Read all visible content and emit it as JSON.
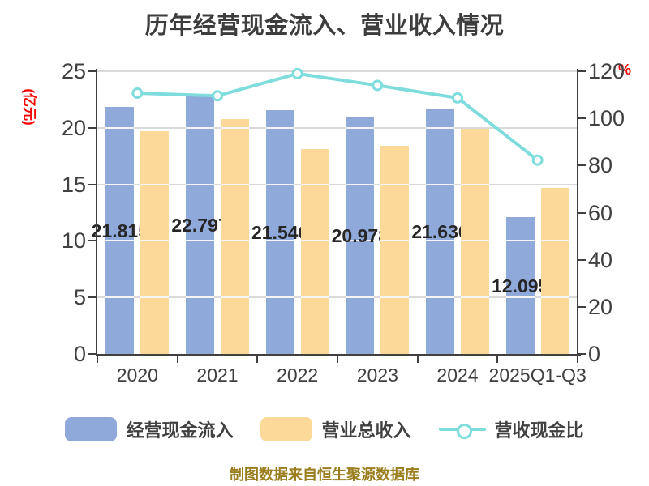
{
  "title": "历年经营现金流入、营业收入情况",
  "credit": "制图数据来自恒生聚源数据库",
  "left_axis": {
    "unit_label": "(亿元)",
    "ticks": [
      0,
      5,
      10,
      15,
      20,
      25
    ]
  },
  "right_axis": {
    "unit_label": "%",
    "ticks": [
      0,
      20,
      40,
      60,
      80,
      100,
      120
    ]
  },
  "legend": [
    {
      "label": "经营现金流入",
      "swatch": "bar",
      "color": "#8ea9da"
    },
    {
      "label": "营业总收入",
      "swatch": "bar",
      "color": "#fcd998"
    },
    {
      "label": "营收现金比",
      "swatch": "line",
      "color": "#7edcdc"
    }
  ],
  "colors": {
    "background": "#ffffff",
    "title_text": "#3d3d3d",
    "axis": "#404040",
    "gridline": "#d9d9d9",
    "grid_over_bar": "#f5f5f5",
    "bar_blue": "#8ea9da",
    "bar_orange": "#fcd998",
    "line_teal": "#7edcdc",
    "marker_fill": "#ffffff",
    "value_label": "#262626",
    "unit_label_red": "#fb0000",
    "credit_gold": "#9a7d1c"
  },
  "chart_data": {
    "type": "bar",
    "title": "历年经营现金流入、营业收入情况",
    "categories": [
      "2020",
      "2021",
      "2022",
      "2023",
      "2024",
      "2025Q1-Q3"
    ],
    "series": [
      {
        "name": "经营现金流入",
        "type": "bar",
        "axis": "left",
        "color": "#8ea9da",
        "values": [
          21.815,
          22.797,
          21.546,
          20.978,
          21.636,
          12.095
        ],
        "labels": [
          "21.815",
          "22.797",
          "21.546",
          "20.978",
          "21.636",
          "12.095"
        ]
      },
      {
        "name": "营业总收入",
        "type": "bar",
        "axis": "left",
        "color": "#fcd998",
        "values": [
          19.7,
          20.8,
          18.1,
          18.4,
          19.9,
          14.7
        ]
      },
      {
        "name": "营收现金比",
        "type": "line",
        "axis": "right",
        "color": "#7edcdc",
        "values": [
          110.7,
          109.6,
          119.0,
          114.0,
          108.7,
          82.3
        ]
      }
    ],
    "ylabel_left": "(亿元)",
    "ylabel_right": "%",
    "ylim_left": [
      0,
      25
    ],
    "ylim_right": [
      0,
      120
    ],
    "yticks_left": [
      0,
      5,
      10,
      15,
      20,
      25
    ],
    "yticks_right": [
      0,
      20,
      40,
      60,
      80,
      100,
      120
    ],
    "grid": true,
    "legend_position": "bottom"
  }
}
